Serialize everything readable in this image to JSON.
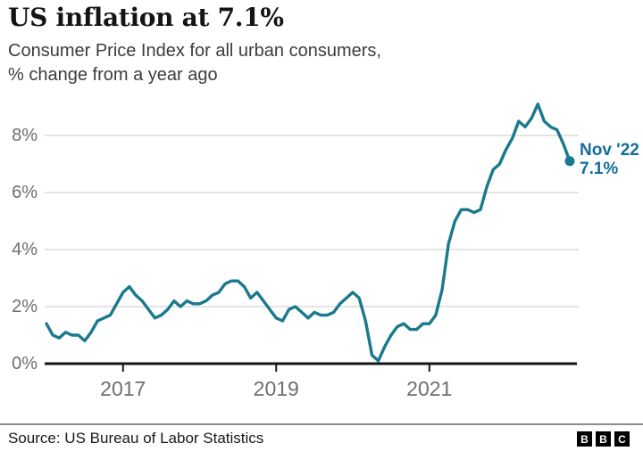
{
  "header": {
    "title": "US inflation at 7.1%",
    "subtitle_line1": "Consumer Price Index for all urban consumers,",
    "subtitle_line2": "% change from a year ago"
  },
  "chart_data": {
    "type": "line",
    "title": "US inflation at 7.1%",
    "subtitle": "Consumer Price Index for all urban consumers, % change from a year ago",
    "x_unit": "month",
    "x_start": "2016-01",
    "x_end": "2022-11",
    "ylim": [
      0,
      9.4
    ],
    "grid": "horizontal",
    "series": [
      {
        "name": "CPI, % change from a year ago",
        "values": [
          1.4,
          1.0,
          0.9,
          1.1,
          1.0,
          1.0,
          0.8,
          1.1,
          1.5,
          1.6,
          1.7,
          2.1,
          2.5,
          2.7,
          2.4,
          2.2,
          1.9,
          1.6,
          1.7,
          1.9,
          2.2,
          2.0,
          2.2,
          2.1,
          2.1,
          2.2,
          2.4,
          2.5,
          2.8,
          2.9,
          2.9,
          2.7,
          2.3,
          2.5,
          2.2,
          1.9,
          1.6,
          1.5,
          1.9,
          2.0,
          1.8,
          1.6,
          1.8,
          1.7,
          1.7,
          1.8,
          2.1,
          2.3,
          2.5,
          2.3,
          1.5,
          0.3,
          0.1,
          0.6,
          1.0,
          1.3,
          1.4,
          1.2,
          1.2,
          1.4,
          1.4,
          1.7,
          2.6,
          4.2,
          5.0,
          5.4,
          5.4,
          5.3,
          5.4,
          6.2,
          6.8,
          7.0,
          7.5,
          7.9,
          8.5,
          8.3,
          8.6,
          9.1,
          8.5,
          8.3,
          8.2,
          7.7,
          7.1
        ]
      }
    ],
    "x_ticks": [
      {
        "label": "2017",
        "month_index": 12
      },
      {
        "label": "2019",
        "month_index": 36
      },
      {
        "label": "2021",
        "month_index": 60
      }
    ],
    "y_ticks": [
      {
        "label": "0%",
        "value": 0
      },
      {
        "label": "2%",
        "value": 2
      },
      {
        "label": "4%",
        "value": 4
      },
      {
        "label": "6%",
        "value": 6
      },
      {
        "label": "8%",
        "value": 8
      }
    ],
    "annotation": {
      "line1": "Nov '22",
      "line2": "7.1%",
      "value": 7.1
    },
    "colors": {
      "line": "#1A798E",
      "marker": "#1A798E",
      "annotation_text": "#146E9B",
      "grid": "#DBDBDB",
      "axis": "#161616",
      "tick_label": "#6E6E73"
    }
  },
  "footer": {
    "source": "Source: US Bureau of Labor Statistics",
    "logo_letters": [
      "B",
      "B",
      "C"
    ]
  }
}
